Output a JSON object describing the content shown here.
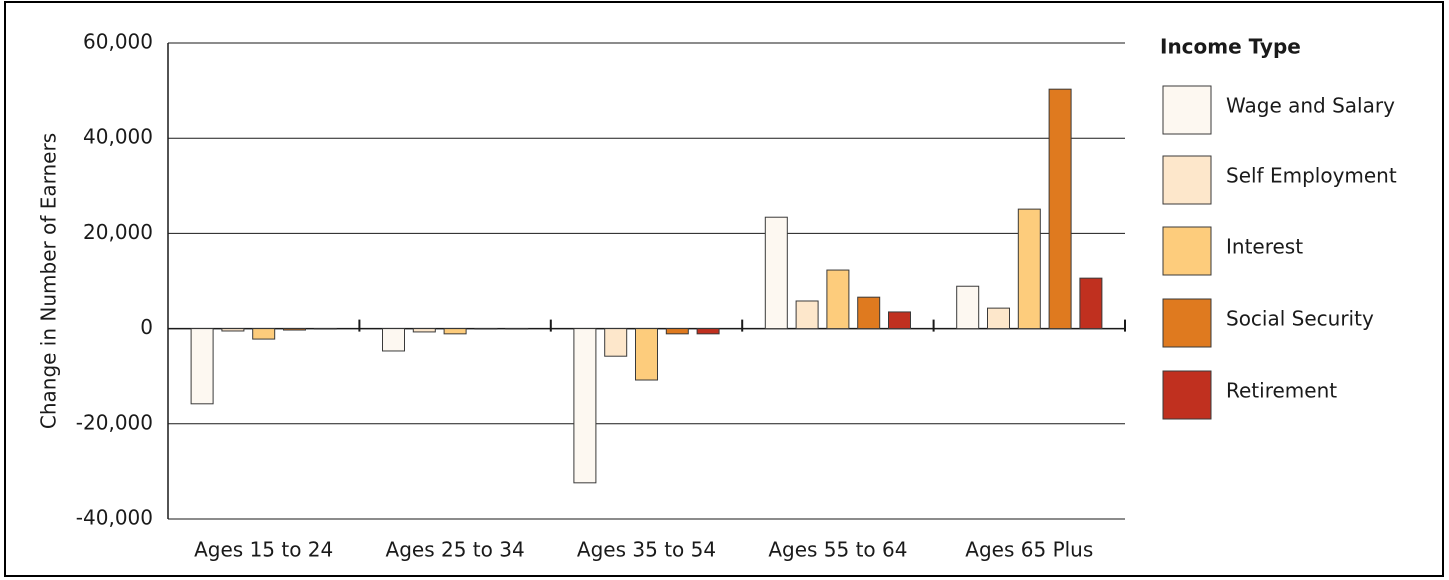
{
  "chart_data": {
    "type": "bar",
    "y_label": "Change in Number of Earners",
    "legend_title": "Income Type",
    "legend": "right",
    "grid": true,
    "categories": [
      "Ages 15 to 24",
      "Ages 25 to 34",
      "Ages 35 to 54",
      "Ages 55 to 64",
      "Ages 65 Plus"
    ],
    "series": [
      {
        "name": "Wage and Salary",
        "color": "#fdf8f1",
        "values": [
          -15800,
          -4700,
          -32400,
          23400,
          8900
        ]
      },
      {
        "name": "Self Employment",
        "color": "#fde7cb",
        "values": [
          -500,
          -700,
          -5800,
          5800,
          4300
        ]
      },
      {
        "name": "Interest",
        "color": "#fdcc7c",
        "values": [
          -2200,
          -1100,
          -10800,
          12300,
          25100
        ]
      },
      {
        "name": "Social Security",
        "color": "#df7a1f",
        "values": [
          -300,
          -100,
          -1100,
          6600,
          50300
        ]
      },
      {
        "name": "Retirement",
        "color": "#c0301f",
        "values": [
          -100,
          -100,
          -1100,
          3500,
          10600
        ]
      }
    ],
    "ylim": [
      -40000,
      60000
    ],
    "yticks": [
      {
        "value": -40000,
        "label": "-40,000"
      },
      {
        "value": -20000,
        "label": "-20,000"
      },
      0,
      {
        "value": 20000,
        "label": "20,000"
      },
      {
        "value": 40000,
        "label": "40,000"
      },
      {
        "value": 60000,
        "label": "60,000"
      }
    ]
  }
}
